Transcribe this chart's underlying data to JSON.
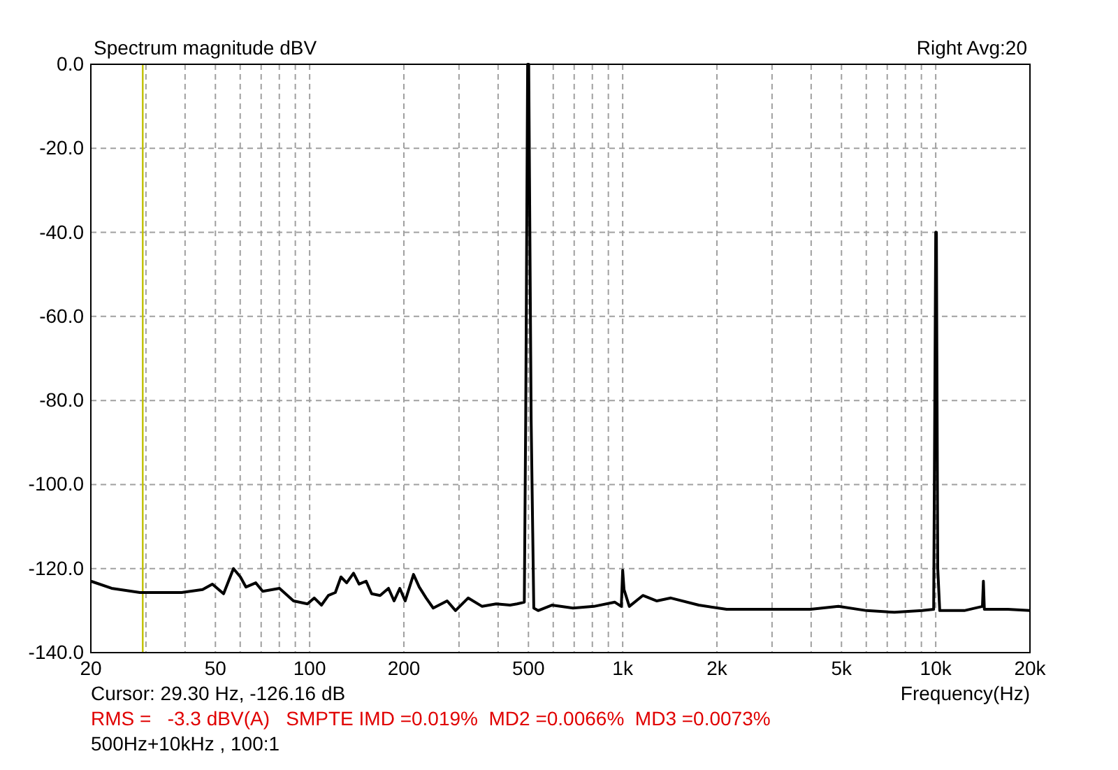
{
  "chart_data": {
    "type": "line",
    "title": "Spectrum magnitude dBV",
    "subtitle": "Right  Avg:20",
    "xlabel": "Frequency(Hz)",
    "annotations": [
      "Cursor: 29.30 Hz, -126.16 dB",
      "RMS =   -3.3 dBV(A)   SMPTE IMD =0.019%  MD2 =0.0066%  MD3 =0.0073%",
      "500Hz+10kHz , 100:1"
    ],
    "log": "x",
    "grid": true,
    "line_style": "solid",
    "marker": "none",
    "xlim": [
      20,
      20000
    ],
    "ylim": [
      -140,
      0
    ],
    "xticks": [
      20,
      {
        "value": 30,
        "label": null
      },
      {
        "value": 40,
        "label": null
      },
      50,
      {
        "value": 60,
        "label": null
      },
      {
        "value": 70,
        "label": null
      },
      {
        "value": 80,
        "label": null
      },
      {
        "value": 90,
        "label": null
      },
      100,
      200,
      {
        "value": 300,
        "label": null
      },
      {
        "value": 400,
        "label": null
      },
      500,
      {
        "value": 600,
        "label": null
      },
      {
        "value": 700,
        "label": null
      },
      {
        "value": 800,
        "label": null
      },
      {
        "value": 900,
        "label": null
      },
      {
        "value": 1000,
        "label": "1k"
      },
      {
        "value": 2000,
        "label": "2k"
      },
      {
        "value": 3000,
        "label": null
      },
      {
        "value": 4000,
        "label": null
      },
      {
        "value": 5000,
        "label": "5k"
      },
      {
        "value": 6000,
        "label": null
      },
      {
        "value": 7000,
        "label": null
      },
      {
        "value": 8000,
        "label": null
      },
      {
        "value": 9000,
        "label": null
      },
      {
        "value": 10000,
        "label": "10k"
      },
      {
        "value": 20000,
        "label": "20k"
      }
    ],
    "yticks": [
      {
        "value": 0,
        "label": "0.0"
      },
      {
        "value": -20,
        "label": "-20.0"
      },
      {
        "value": -40,
        "label": "-40.0"
      },
      {
        "value": -60,
        "label": "-60.0"
      },
      {
        "value": -80,
        "label": "-80.0"
      },
      {
        "value": -100,
        "label": "-100.0"
      },
      {
        "value": -120,
        "label": "-120.0"
      },
      {
        "value": -140,
        "label": "-140.0"
      }
    ],
    "ref_lines": [
      {
        "axis": "x",
        "value": 29.3,
        "color": "#c0c000"
      }
    ],
    "series": [
      {
        "color": "#000000",
        "x": [
          20,
          23.3,
          28.7,
          39,
          45.5,
          48.9,
          53.1,
          57.1,
          60.1,
          62.6,
          67.3,
          70.8,
          80.1,
          88.8,
          98.4,
          103.5,
          109.1,
          114.8,
          120.8,
          125.9,
          131.3,
          138.1,
          143.9,
          151.5,
          157.8,
          167.9,
          178.6,
          186.1,
          194.1,
          201.9,
          214.7,
          223.9,
          235.6,
          248.2,
          274.9,
          292.4,
          320.8,
          355.7,
          394.4,
          436.8,
          460,
          485,
          490,
          497,
          501,
          510,
          520,
          537,
          594,
          694,
          809,
          944,
          990,
          1000,
          1010,
          1050,
          1160,
          1286,
          1425,
          1750,
          2148,
          2925,
          3982,
          4888,
          6010,
          7380,
          9060,
          9850,
          9950,
          10000,
          10050,
          10150,
          10300,
          12340,
          14100,
          14200,
          14300,
          17000,
          20000
        ],
        "values": [
          -123,
          -124.7,
          -125.7,
          -125.7,
          -125,
          -123.7,
          -126,
          -120,
          -122,
          -124.4,
          -123.4,
          -125.4,
          -124.7,
          -127.7,
          -128.4,
          -127,
          -128.7,
          -126.4,
          -125.7,
          -122,
          -123.4,
          -121.1,
          -123.7,
          -123,
          -126,
          -126.4,
          -124.7,
          -127.7,
          -124.7,
          -127.7,
          -121.4,
          -124.4,
          -127,
          -129.4,
          -127.7,
          -130,
          -127,
          -129,
          -128.4,
          -128.7,
          -128.4,
          -128,
          -84.5,
          0,
          0,
          -84.5,
          -129.4,
          -130,
          -128.7,
          -129.4,
          -129,
          -128,
          -129,
          -120.4,
          -125,
          -129,
          -126.4,
          -127.7,
          -127,
          -128.7,
          -129.7,
          -129.7,
          -129.7,
          -129,
          -130,
          -130.4,
          -130,
          -129.7,
          -70,
          -40,
          -40,
          -120,
          -130,
          -130,
          -129,
          -123,
          -129.7,
          -129.7,
          -130
        ]
      }
    ]
  }
}
